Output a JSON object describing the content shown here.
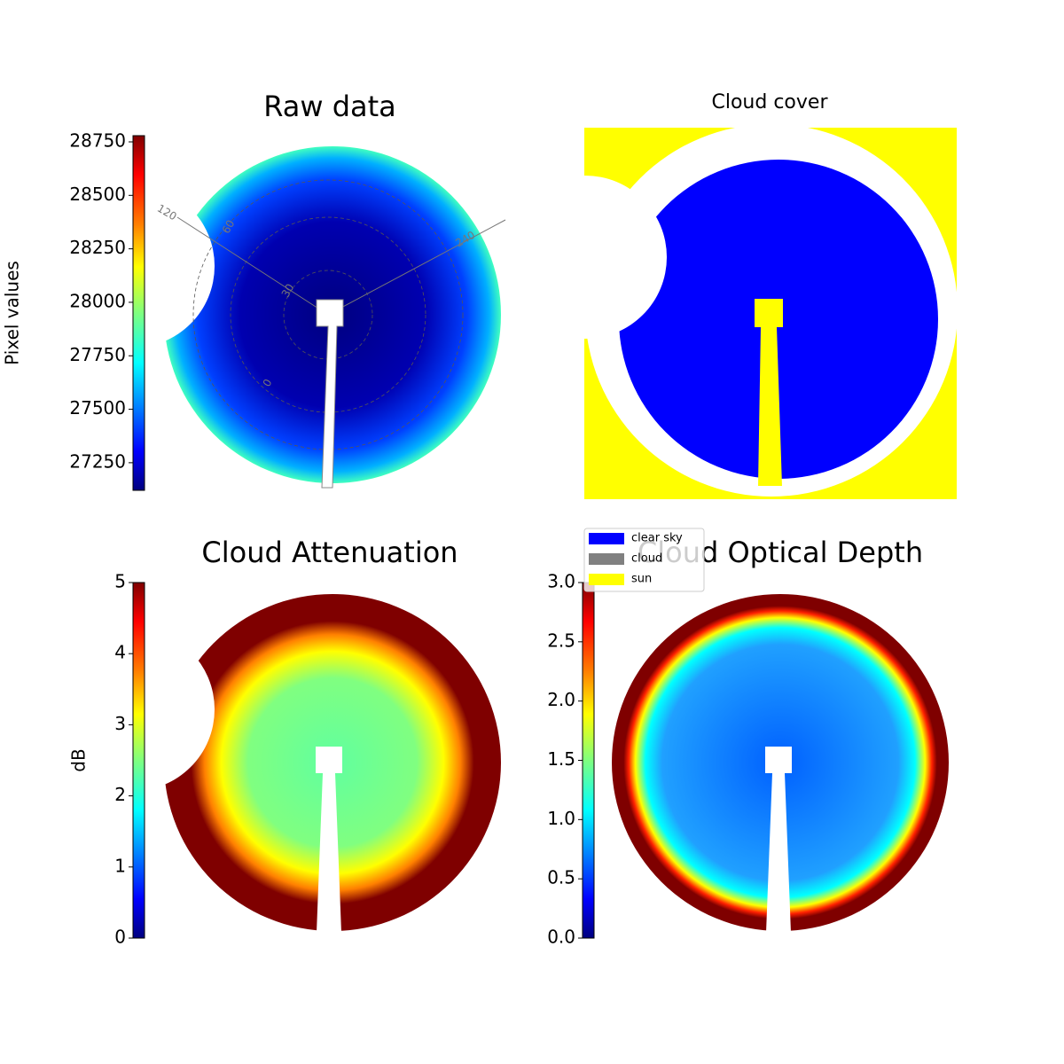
{
  "chart_data": [
    {
      "type": "image",
      "title": "Raw data",
      "colorbar_label": "Pixel values",
      "clim": [
        27121,
        28779
      ],
      "ticks": [
        27250,
        27500,
        27750,
        28000,
        28250,
        28500,
        28750
      ],
      "annotations": [
        "120",
        "60",
        "240",
        "30",
        "0"
      ]
    },
    {
      "type": "image",
      "title": "Cloud cover",
      "legend": [
        {
          "name": "clear sky",
          "color": "#0000ff"
        },
        {
          "name": "cloud",
          "color": "#808080"
        },
        {
          "name": "sun",
          "color": "#ffff00"
        }
      ]
    },
    {
      "type": "image",
      "title": "Cloud Attenuation",
      "colorbar_label": "dB",
      "clim": [
        0,
        5
      ],
      "ticks": [
        0,
        1,
        2,
        3,
        4,
        5
      ]
    },
    {
      "type": "image",
      "title": "Cloud Optical Depth",
      "clim": [
        0,
        3
      ],
      "ticks": [
        {
          "value": 0,
          "label": "0.0"
        },
        0.5,
        {
          "value": 1,
          "label": "1.0"
        },
        1.5,
        {
          "value": 2,
          "label": "2.0"
        },
        2.5,
        {
          "value": 3,
          "label": "3.0"
        }
      ]
    }
  ]
}
